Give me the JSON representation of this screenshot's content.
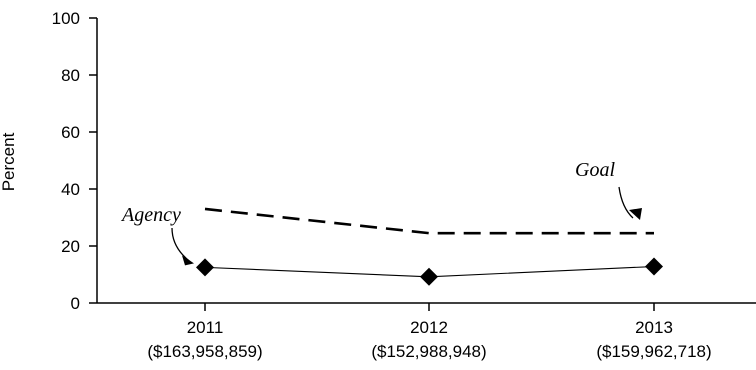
{
  "chart_data": {
    "type": "line",
    "categories": [
      "2011",
      "2012",
      "2013"
    ],
    "category_sublabels": [
      "($163,958,859)",
      "($152,988,948)",
      "($159,962,718)"
    ],
    "ylabel": "Percent",
    "xlabel": "",
    "ylim": [
      0,
      100
    ],
    "yticks": [
      0,
      20,
      40,
      60,
      80,
      100
    ],
    "grid": false,
    "series": [
      {
        "name": "Agency",
        "values": [
          12.5,
          9.2,
          12.8
        ],
        "style": "solid",
        "marker": "diamond",
        "color": "#000000"
      },
      {
        "name": "Goal",
        "values": [
          33,
          24.5,
          24.5
        ],
        "style": "dashed",
        "marker": "none",
        "color": "#000000"
      }
    ],
    "annotations": [
      {
        "text": "Agency",
        "target_series": "Agency",
        "target_index": 0
      },
      {
        "text": "Goal",
        "target_series": "Goal",
        "target_index": 2
      }
    ]
  }
}
